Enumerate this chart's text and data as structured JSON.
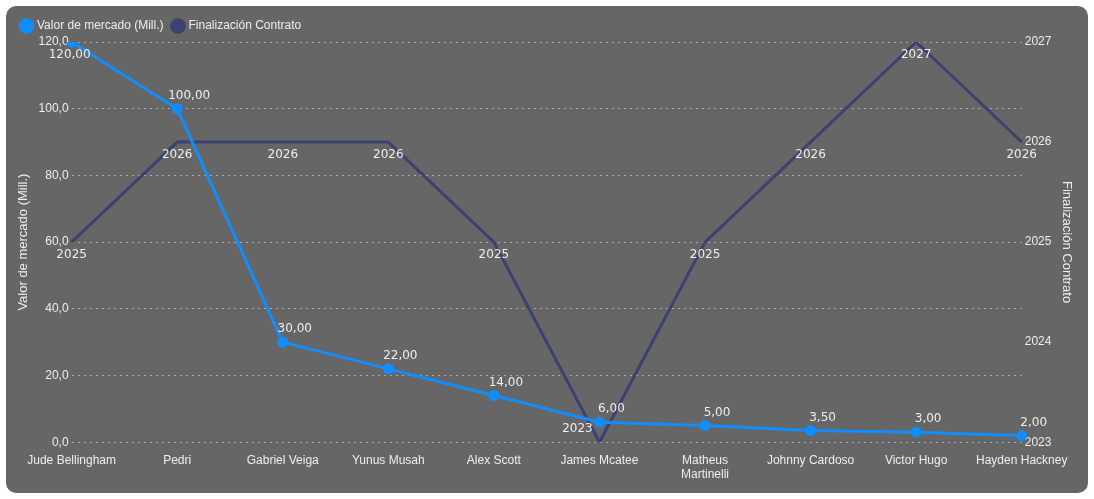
{
  "chart_data": {
    "type": "line",
    "xlabel": null,
    "ylabel": "Valor de mercado (Mill.)",
    "y2label": "Finalización Contrato",
    "categories": [
      "Jude Bellingham",
      "Pedri",
      "Gabriel Veiga",
      "Yunus Musah",
      "Alex Scott",
      "James Mcatee",
      "Matheus Martinelli",
      "Johnny Cardoso",
      "Victor Hugo",
      "Hayden Hackney"
    ],
    "series": [
      {
        "name": "Valor de mercado (Mill.)",
        "color": "#118dff",
        "marker": "circle",
        "values": [
          120,
          100,
          30,
          22,
          14,
          6,
          5,
          3.5,
          3,
          2
        ],
        "value_labels": [
          "120,00",
          "100,00",
          "30,00",
          "22,00",
          "14,00",
          "6,00",
          "5,00",
          "3,50",
          "3,00",
          "2,00"
        ]
      },
      {
        "name": "Finalización Contrato",
        "color": "#3b4271",
        "axis": "y2",
        "marker": "none",
        "values": [
          2025,
          2026,
          2026,
          2026,
          2025,
          2023,
          2025,
          2026,
          2027,
          2026
        ],
        "value_labels": [
          "2025",
          "2026",
          "2026",
          "2026",
          "2025",
          "2023",
          "2025",
          "2026",
          "2027",
          "2026"
        ]
      }
    ],
    "ylim": [
      0,
      120
    ],
    "yticks": [
      {
        "value": 0,
        "label": "0,0"
      },
      {
        "value": 20,
        "label": "20,0"
      },
      {
        "value": 40,
        "label": "40,0"
      },
      {
        "value": 60,
        "label": "60,0"
      },
      {
        "value": 80,
        "label": "80,0"
      },
      {
        "value": 100,
        "label": "100,0"
      },
      {
        "value": 120,
        "label": "120,0"
      }
    ],
    "y2lim": [
      2023,
      2027
    ],
    "y2ticks": [
      2023,
      2024,
      2025,
      2026,
      2027
    ],
    "grid": "y",
    "legend": "top left"
  }
}
